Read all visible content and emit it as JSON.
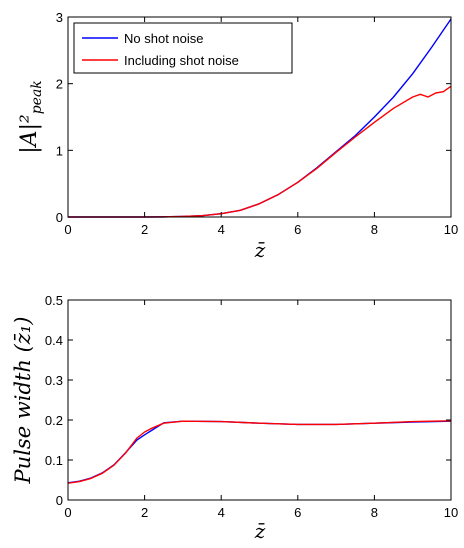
{
  "chart_data": [
    {
      "type": "line",
      "title": "",
      "xlabel": "z̄",
      "ylabel": "|A|²",
      "ylabel_sub": "peak",
      "xlim": [
        0,
        10
      ],
      "ylim": [
        0,
        3
      ],
      "xticks": [
        0,
        2,
        4,
        6,
        8,
        10
      ],
      "yticks": [
        0,
        1,
        2,
        3
      ],
      "grid": false,
      "legend_position": "top-left",
      "series": [
        {
          "name": "No shot noise",
          "color": "#0000ff",
          "x": [
            0,
            1,
            2,
            2.5,
            3,
            3.5,
            4,
            4.5,
            5,
            5.5,
            6,
            6.5,
            7,
            7.5,
            8,
            8.5,
            9,
            9.5,
            10
          ],
          "y": [
            0,
            0,
            0,
            0.002,
            0.008,
            0.02,
            0.05,
            0.1,
            0.2,
            0.34,
            0.52,
            0.74,
            0.98,
            1.22,
            1.5,
            1.8,
            2.15,
            2.55,
            2.97
          ]
        },
        {
          "name": "Including shot noise",
          "color": "#ff0000",
          "x": [
            0,
            1,
            2,
            2.5,
            3,
            3.5,
            4,
            4.5,
            5,
            5.5,
            6,
            6.5,
            7,
            7.5,
            8,
            8.5,
            9,
            9.2,
            9.4,
            9.6,
            9.8,
            10
          ],
          "y": [
            0,
            0,
            0,
            0.002,
            0.008,
            0.02,
            0.05,
            0.1,
            0.2,
            0.34,
            0.52,
            0.73,
            0.97,
            1.2,
            1.42,
            1.63,
            1.8,
            1.84,
            1.8,
            1.86,
            1.88,
            1.96
          ]
        }
      ]
    },
    {
      "type": "line",
      "title": "",
      "xlabel": "z̄",
      "ylabel": "Pulse width (z̄₁)",
      "xlim": [
        0,
        10
      ],
      "ylim": [
        0,
        0.5
      ],
      "xticks": [
        0,
        2,
        4,
        6,
        8,
        10
      ],
      "yticks": [
        0,
        0.1,
        0.2,
        0.3,
        0.4,
        0.5
      ],
      "grid": false,
      "series": [
        {
          "color": "#0000ff",
          "x": [
            0,
            0.3,
            0.6,
            0.9,
            1.2,
            1.5,
            1.8,
            2.0,
            2.2,
            2.5,
            3,
            4,
            5,
            6,
            7,
            8,
            9,
            10
          ],
          "y": [
            0.043,
            0.047,
            0.055,
            0.068,
            0.088,
            0.118,
            0.15,
            0.163,
            0.175,
            0.193,
            0.197,
            0.196,
            0.192,
            0.189,
            0.189,
            0.192,
            0.195,
            0.197
          ]
        },
        {
          "color": "#ff0000",
          "x": [
            0,
            0.3,
            0.6,
            0.9,
            1.2,
            1.5,
            1.8,
            2.0,
            2.2,
            2.5,
            3,
            4,
            5,
            6,
            7,
            8,
            9,
            10
          ],
          "y": [
            0.042,
            0.046,
            0.054,
            0.067,
            0.087,
            0.117,
            0.155,
            0.17,
            0.18,
            0.192,
            0.197,
            0.196,
            0.192,
            0.189,
            0.189,
            0.192,
            0.196,
            0.198
          ]
        }
      ]
    }
  ]
}
